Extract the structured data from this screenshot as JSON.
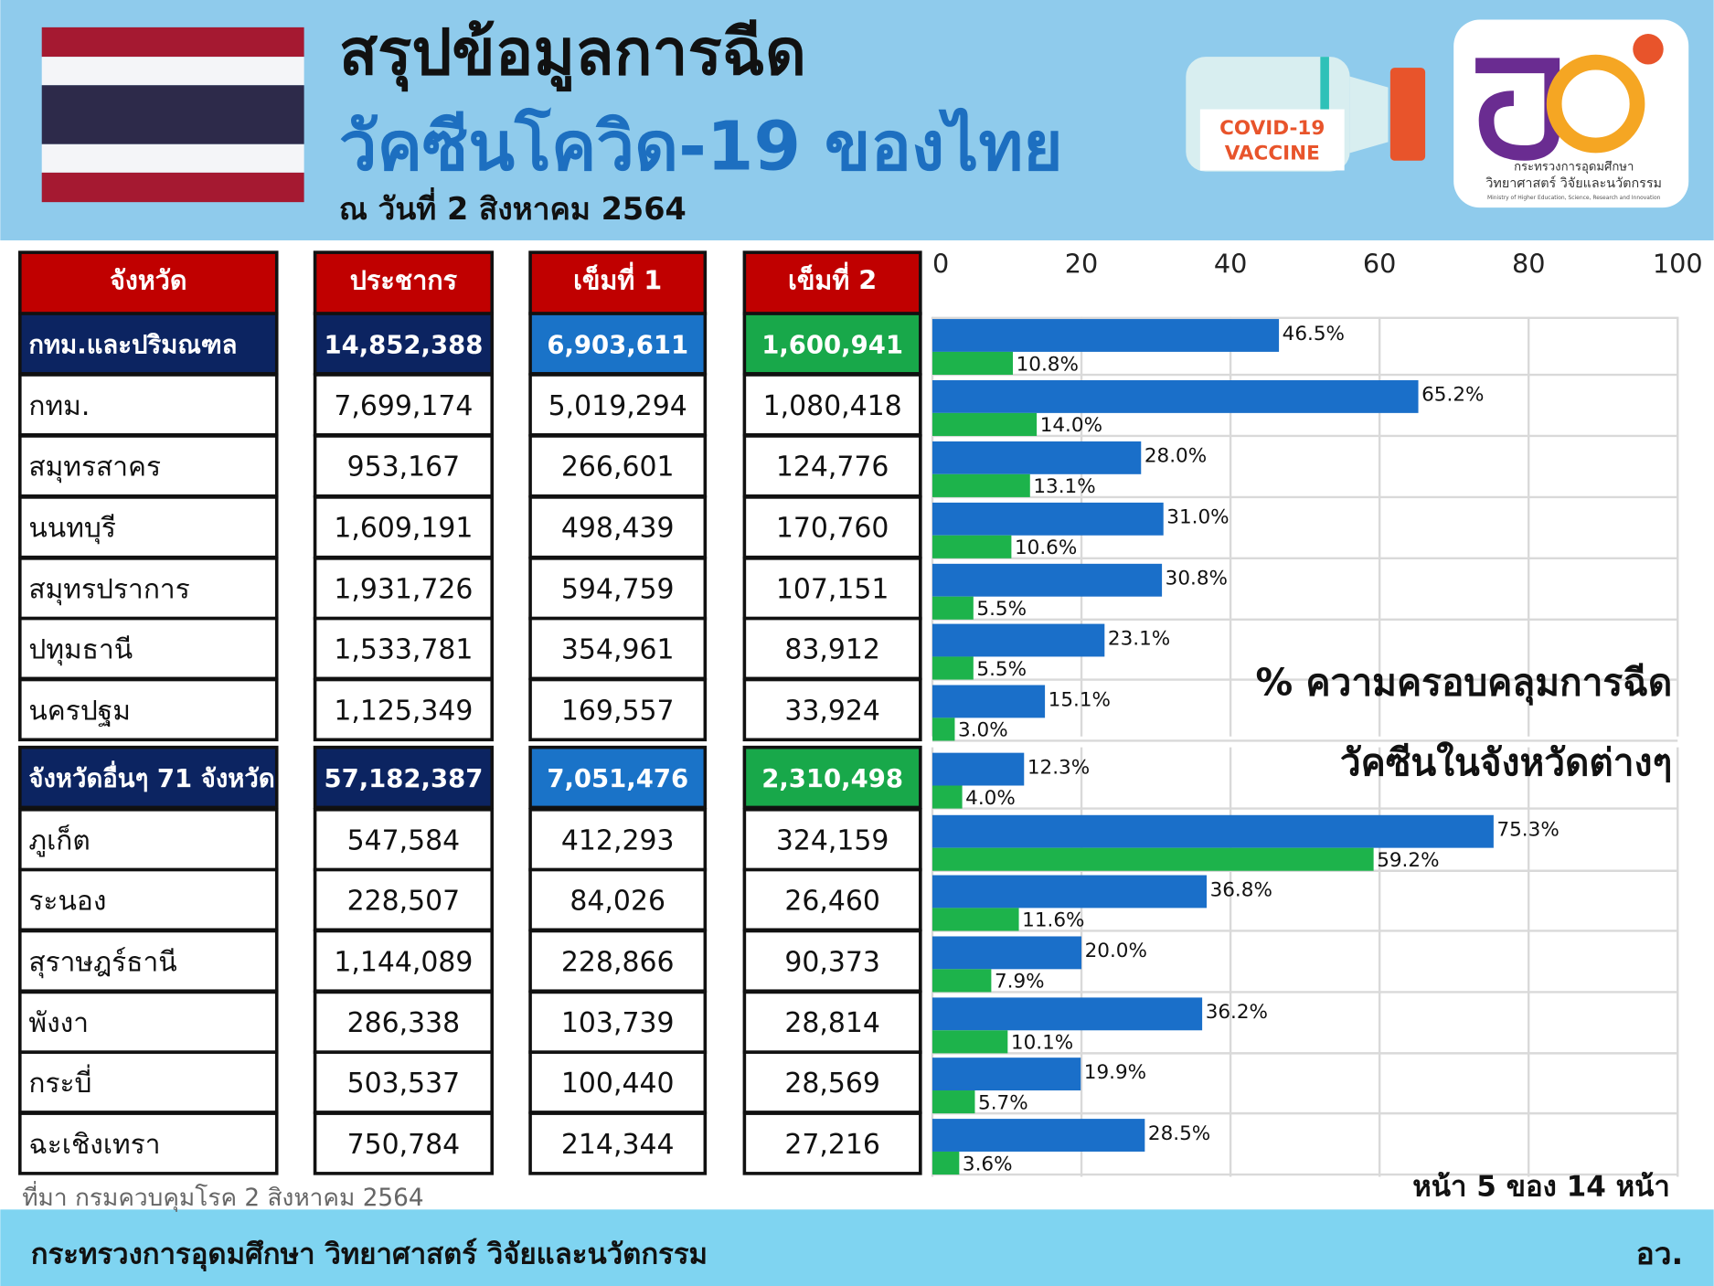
{
  "header": {
    "title_line1": "สรุปข้อมูลการฉีด",
    "title_line2": "วัคซีนโควิด-19 ของไทย",
    "date": "ณ วันที่ 2 สิงหาคม 2564",
    "badge_line1": "COVID-19",
    "badge_line2": "VACCINE",
    "logo_line1": "กระทรวงการอุดมศึกษา",
    "logo_line2": "วิทยาศาสตร์ วิจัยและนวัตกรรม",
    "logo_line3": "Ministry of Higher Education, Science, Research and Innovation"
  },
  "table": {
    "columns": [
      "จังหวัด",
      "ประชากร",
      "เข็มที่ 1",
      "เข็มที่ 2"
    ],
    "rows": [
      [
        "กทม.และปริมณฑล",
        "14,852,388",
        "6,903,611",
        "1,600,941"
      ],
      [
        "กทม.",
        "7,699,174",
        "5,019,294",
        "1,080,418"
      ],
      [
        "สมุทรสาคร",
        "953,167",
        "266,601",
        "124,776"
      ],
      [
        "นนทบุรี",
        "1,609,191",
        "498,439",
        "170,760"
      ],
      [
        "สมุทรปราการ",
        "1,931,726",
        "594,759",
        "107,151"
      ],
      [
        "ปทุมธานี",
        "1,533,781",
        "354,961",
        "83,912"
      ],
      [
        "นครปฐม",
        "1,125,349",
        "169,557",
        "33,924"
      ],
      [
        "จังหวัดอื่นๆ 71 จังหวัด",
        "57,182,387",
        "7,051,476",
        "2,310,498"
      ],
      [
        "ภูเก็ต",
        "547,584",
        "412,293",
        "324,159"
      ],
      [
        "ระนอง",
        "228,507",
        "84,026",
        "26,460"
      ],
      [
        "สุราษฎร์ธานี",
        "1,144,089",
        "228,866",
        "90,373"
      ],
      [
        "พังงา",
        "286,338",
        "103,739",
        "28,814"
      ],
      [
        "กระบี่",
        "503,537",
        "100,440",
        "28,569"
      ],
      [
        "ฉะเชิงเทรา",
        "750,784",
        "214,344",
        "27,216"
      ]
    ]
  },
  "chart_data": {
    "type": "hbar",
    "annotation_line1": "% ความครอบคลุมการฉีด",
    "annotation_line2": "วัคซีนในจังหวัดต่างๆ",
    "xlim": [
      0,
      100
    ],
    "xticks": [
      0,
      20,
      40,
      60,
      80,
      100
    ],
    "grid": true,
    "series": [
      {
        "color": "#1a6fc9",
        "values": [
          46.5,
          65.2,
          28.0,
          31.0,
          30.8,
          23.1,
          15.1,
          12.3,
          75.3,
          36.8,
          20.0,
          36.2,
          19.9,
          28.5
        ],
        "value_labels": [
          "46.5%",
          "65.2%",
          "28.0%",
          "31.0%",
          "30.8%",
          "23.1%",
          "15.1%",
          "12.3%",
          "75.3%",
          "36.8%",
          "20.0%",
          "36.2%",
          "19.9%",
          "28.5%"
        ]
      },
      {
        "color": "#1db34b",
        "values": [
          10.8,
          14.0,
          13.1,
          10.6,
          5.5,
          5.5,
          3.0,
          4.0,
          59.2,
          11.6,
          7.9,
          10.1,
          5.7,
          3.6
        ],
        "value_labels": [
          "10.8%",
          "14.0%",
          "13.1%",
          "10.6%",
          "5.5%",
          "5.5%",
          "3.0%",
          "4.0%",
          "59.2%",
          "11.6%",
          "7.9%",
          "10.1%",
          "5.7%",
          "3.6%"
        ]
      }
    ]
  },
  "footer": {
    "source": "ที่มา กรมควบคุมโรค 2 สิงหาคม 2564",
    "page": "หน้า 5 ของ 14 หน้า",
    "ministry": "กระทรวงการอุดมศึกษา วิทยาศาสตร์ วิจัยและนวัตกรรม",
    "short": "อว."
  }
}
